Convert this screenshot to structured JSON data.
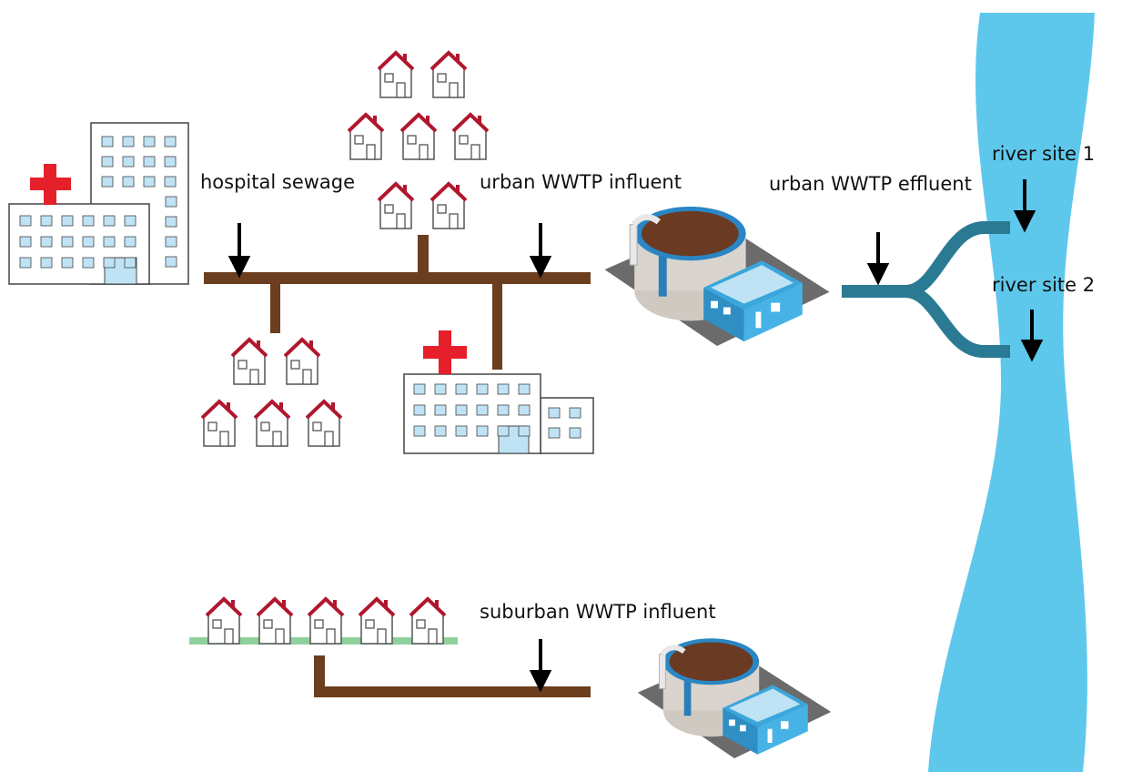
{
  "labels": {
    "hospital_sewage": "hospital sewage",
    "urban_influent": "urban WWTP influent",
    "urban_effluent": "urban WWTP effluent",
    "river_site_1": "river site 1",
    "river_site_2": "river site 2",
    "suburban_influent": "suburban WWTP influent"
  }
}
